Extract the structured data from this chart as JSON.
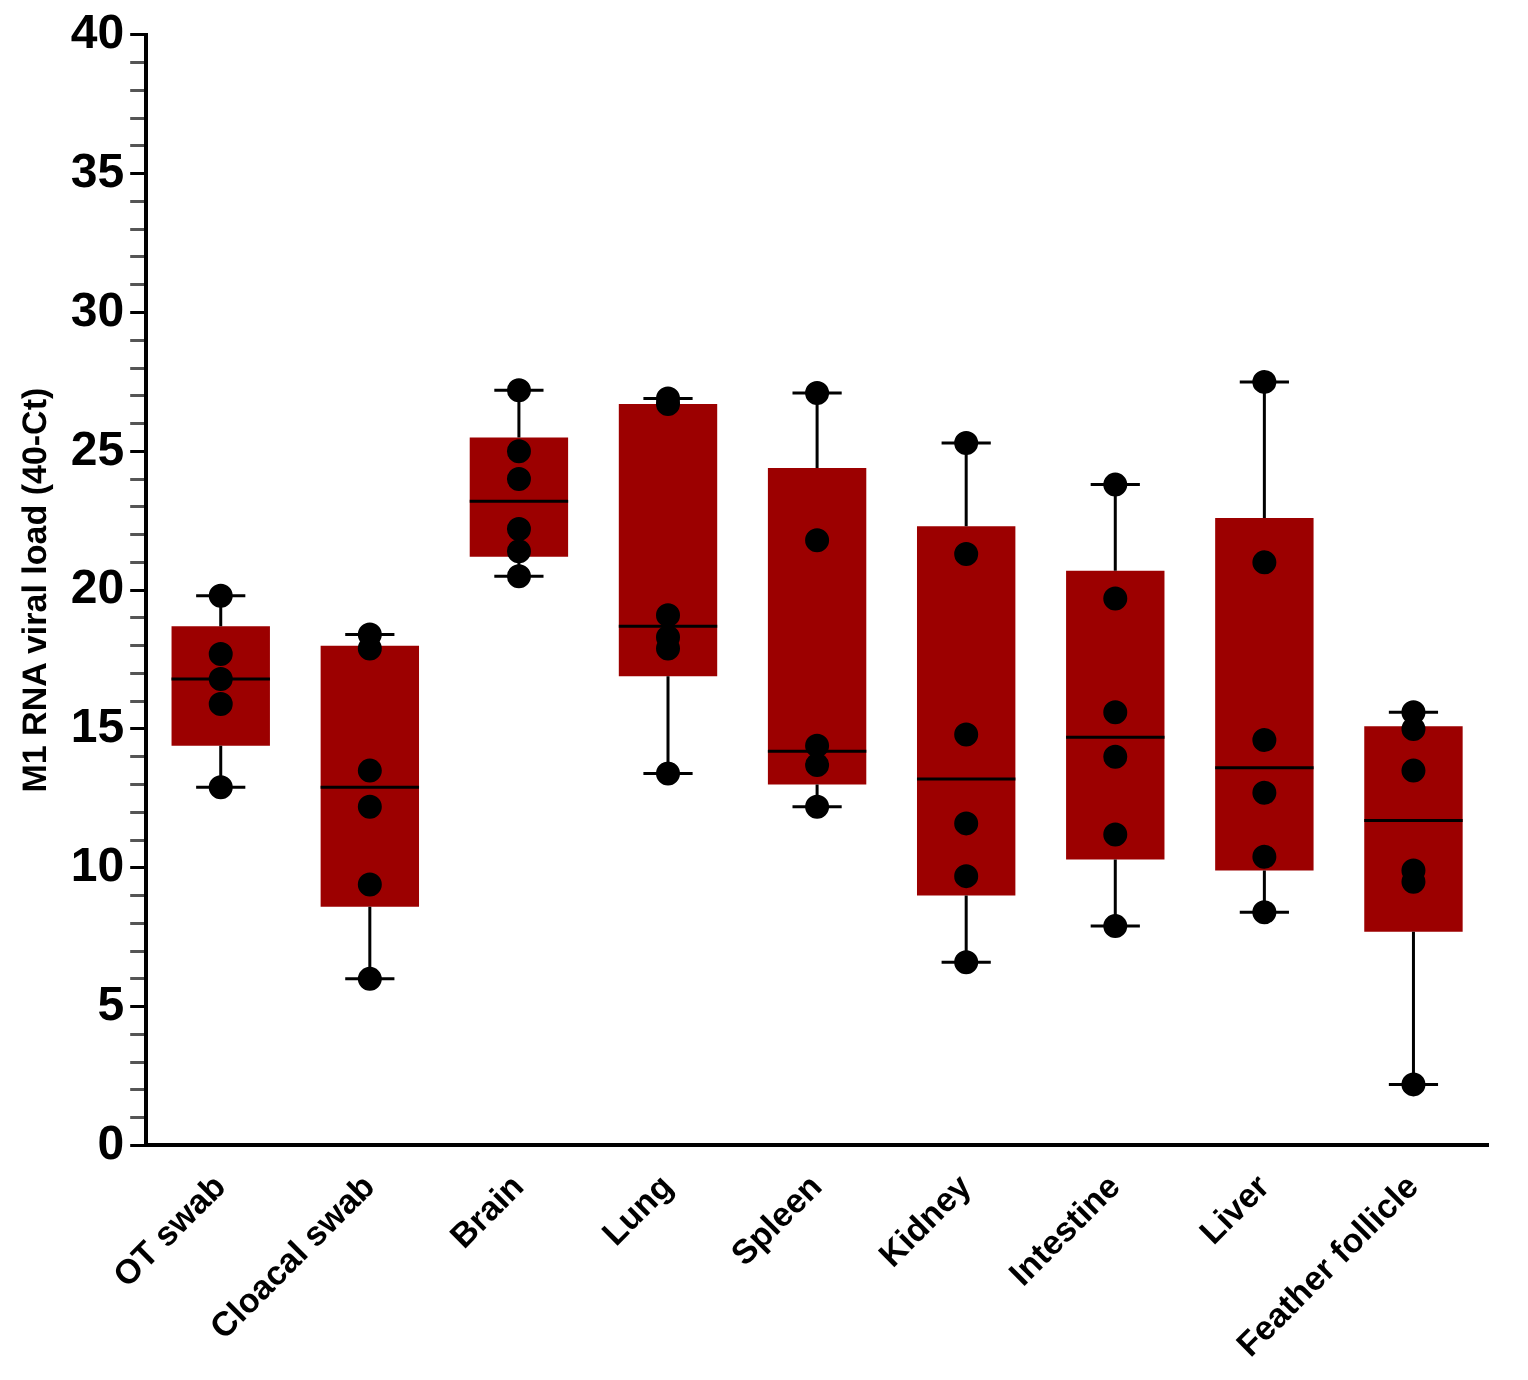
{
  "chart_data": {
    "type": "box",
    "ylabel": "M1 RNA viral load (40-Ct)",
    "categories": [
      "OT swab",
      "Cloacal swab",
      "Brain",
      "Lung",
      "Spleen",
      "Kidney",
      "Intestine",
      "Liver",
      "Feather follicle"
    ],
    "color": "#9c0000",
    "boxes": [
      {
        "low": 12.9,
        "q1": 14.4,
        "median": 16.8,
        "q3": 18.7,
        "high": 19.8
      },
      {
        "low": 6.0,
        "q1": 8.6,
        "median": 12.9,
        "q3": 18.0,
        "high": 18.4
      },
      {
        "low": 20.5,
        "q1": 21.2,
        "median": 23.2,
        "q3": 25.5,
        "high": 27.2
      },
      {
        "low": 13.4,
        "q1": 16.9,
        "median": 18.7,
        "q3": 26.7,
        "high": 26.9
      },
      {
        "low": 12.2,
        "q1": 13.0,
        "median": 14.2,
        "q3": 24.4,
        "high": 27.1
      },
      {
        "low": 6.6,
        "q1": 9.0,
        "median": 13.2,
        "q3": 22.3,
        "high": 25.3
      },
      {
        "low": 7.9,
        "q1": 10.3,
        "median": 14.7,
        "q3": 20.7,
        "high": 23.8
      },
      {
        "low": 8.4,
        "q1": 9.9,
        "median": 13.6,
        "q3": 22.6,
        "high": 27.5
      },
      {
        "low": 2.2,
        "q1": 7.7,
        "median": 11.7,
        "q3": 15.1,
        "high": 15.6
      }
    ],
    "marker": "circle",
    "series": [
      {
        "type": "scatter",
        "color": "#000000",
        "x": [
          "OT swab",
          "OT swab",
          "OT swab",
          "OT swab",
          "OT swab",
          "Cloacal swab",
          "Cloacal swab",
          "Cloacal swab",
          "Cloacal swab",
          "Cloacal swab",
          "Cloacal swab",
          "Brain",
          "Brain",
          "Brain",
          "Brain",
          "Brain",
          "Brain",
          "Lung",
          "Lung",
          "Lung",
          "Lung",
          "Lung",
          "Lung",
          "Spleen",
          "Spleen",
          "Spleen",
          "Spleen",
          "Spleen",
          "Kidney",
          "Kidney",
          "Kidney",
          "Kidney",
          "Kidney",
          "Kidney",
          "Intestine",
          "Intestine",
          "Intestine",
          "Intestine",
          "Intestine",
          "Intestine",
          "Liver",
          "Liver",
          "Liver",
          "Liver",
          "Liver",
          "Liver",
          "Feather follicle",
          "Feather follicle",
          "Feather follicle",
          "Feather follicle",
          "Feather follicle",
          "Feather follicle"
        ],
        "values": [
          19.8,
          17.7,
          16.8,
          15.9,
          12.9,
          18.4,
          17.9,
          13.5,
          12.2,
          9.4,
          6.0,
          27.2,
          25.0,
          24.0,
          22.2,
          21.4,
          20.5,
          26.7,
          26.9,
          19.1,
          18.3,
          17.9,
          13.4,
          27.1,
          21.8,
          14.4,
          13.7,
          12.2,
          25.3,
          21.3,
          14.8,
          11.6,
          9.7,
          6.6,
          23.8,
          19.7,
          15.6,
          14.0,
          11.2,
          7.9,
          27.5,
          21.0,
          14.6,
          12.7,
          10.4,
          8.4,
          15.6,
          15.0,
          13.5,
          9.9,
          9.5,
          2.2
        ]
      }
    ],
    "ylim": [
      0,
      40
    ],
    "yticks": [
      0,
      {
        "value": 1,
        "label": null
      },
      {
        "value": 2,
        "label": null
      },
      {
        "value": 3,
        "label": null
      },
      {
        "value": 4,
        "label": null
      },
      5,
      {
        "value": 6,
        "label": null
      },
      {
        "value": 7,
        "label": null
      },
      {
        "value": 8,
        "label": null
      },
      {
        "value": 9,
        "label": null
      },
      10,
      {
        "value": 11,
        "label": null
      },
      {
        "value": 12,
        "label": null
      },
      {
        "value": 13,
        "label": null
      },
      {
        "value": 14,
        "label": null
      },
      15,
      {
        "value": 16,
        "label": null
      },
      {
        "value": 17,
        "label": null
      },
      {
        "value": 18,
        "label": null
      },
      {
        "value": 19,
        "label": null
      },
      20,
      {
        "value": 21,
        "label": null
      },
      {
        "value": 22,
        "label": null
      },
      {
        "value": 23,
        "label": null
      },
      {
        "value": 24,
        "label": null
      },
      25,
      {
        "value": 26,
        "label": null
      },
      {
        "value": 27,
        "label": null
      },
      {
        "value": 28,
        "label": null
      },
      {
        "value": 29,
        "label": null
      },
      30,
      {
        "value": 31,
        "label": null
      },
      {
        "value": 32,
        "label": null
      },
      {
        "value": 33,
        "label": null
      },
      {
        "value": 34,
        "label": null
      },
      35,
      {
        "value": 36,
        "label": null
      },
      {
        "value": 37,
        "label": null
      },
      {
        "value": 38,
        "label": null
      },
      {
        "value": 39,
        "label": null
      },
      40
    ],
    "grid": false,
    "legend": false
  }
}
